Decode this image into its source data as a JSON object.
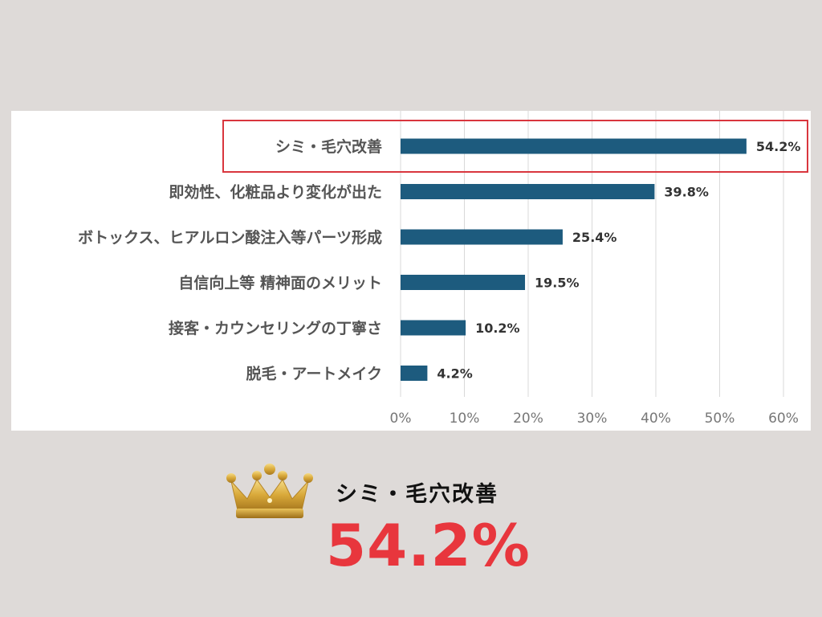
{
  "colors": {
    "bar": "#1d5b7e",
    "highlight": "#d9363e",
    "callout_value": "#e8363d"
  },
  "chart_data": {
    "type": "bar",
    "orientation": "horizontal",
    "categories": [
      "シミ・毛穴改善",
      "即効性、化粧品より変化が出た",
      "ボトックス、ヒアルロン酸注入等パーツ形成",
      "自信向上等 精神面のメリット",
      "接客・カウンセリングの丁寧さ",
      "脱毛・アートメイク"
    ],
    "values": [
      54.2,
      39.8,
      25.4,
      19.5,
      10.2,
      4.2
    ],
    "value_labels": [
      "54.2%",
      "39.8%",
      "25.4%",
      "19.5%",
      "10.2%",
      "4.2%"
    ],
    "xlim": [
      0,
      60
    ],
    "ticks": [
      0,
      10,
      20,
      30,
      40,
      50,
      60
    ],
    "tick_labels": [
      "0%",
      "10%",
      "20%",
      "30%",
      "40%",
      "50%",
      "60%"
    ],
    "grid": true,
    "highlighted_category_index": 0
  },
  "callout": {
    "icon": "crown-icon",
    "label": "シミ・毛穴改善",
    "value": "54.2%"
  }
}
